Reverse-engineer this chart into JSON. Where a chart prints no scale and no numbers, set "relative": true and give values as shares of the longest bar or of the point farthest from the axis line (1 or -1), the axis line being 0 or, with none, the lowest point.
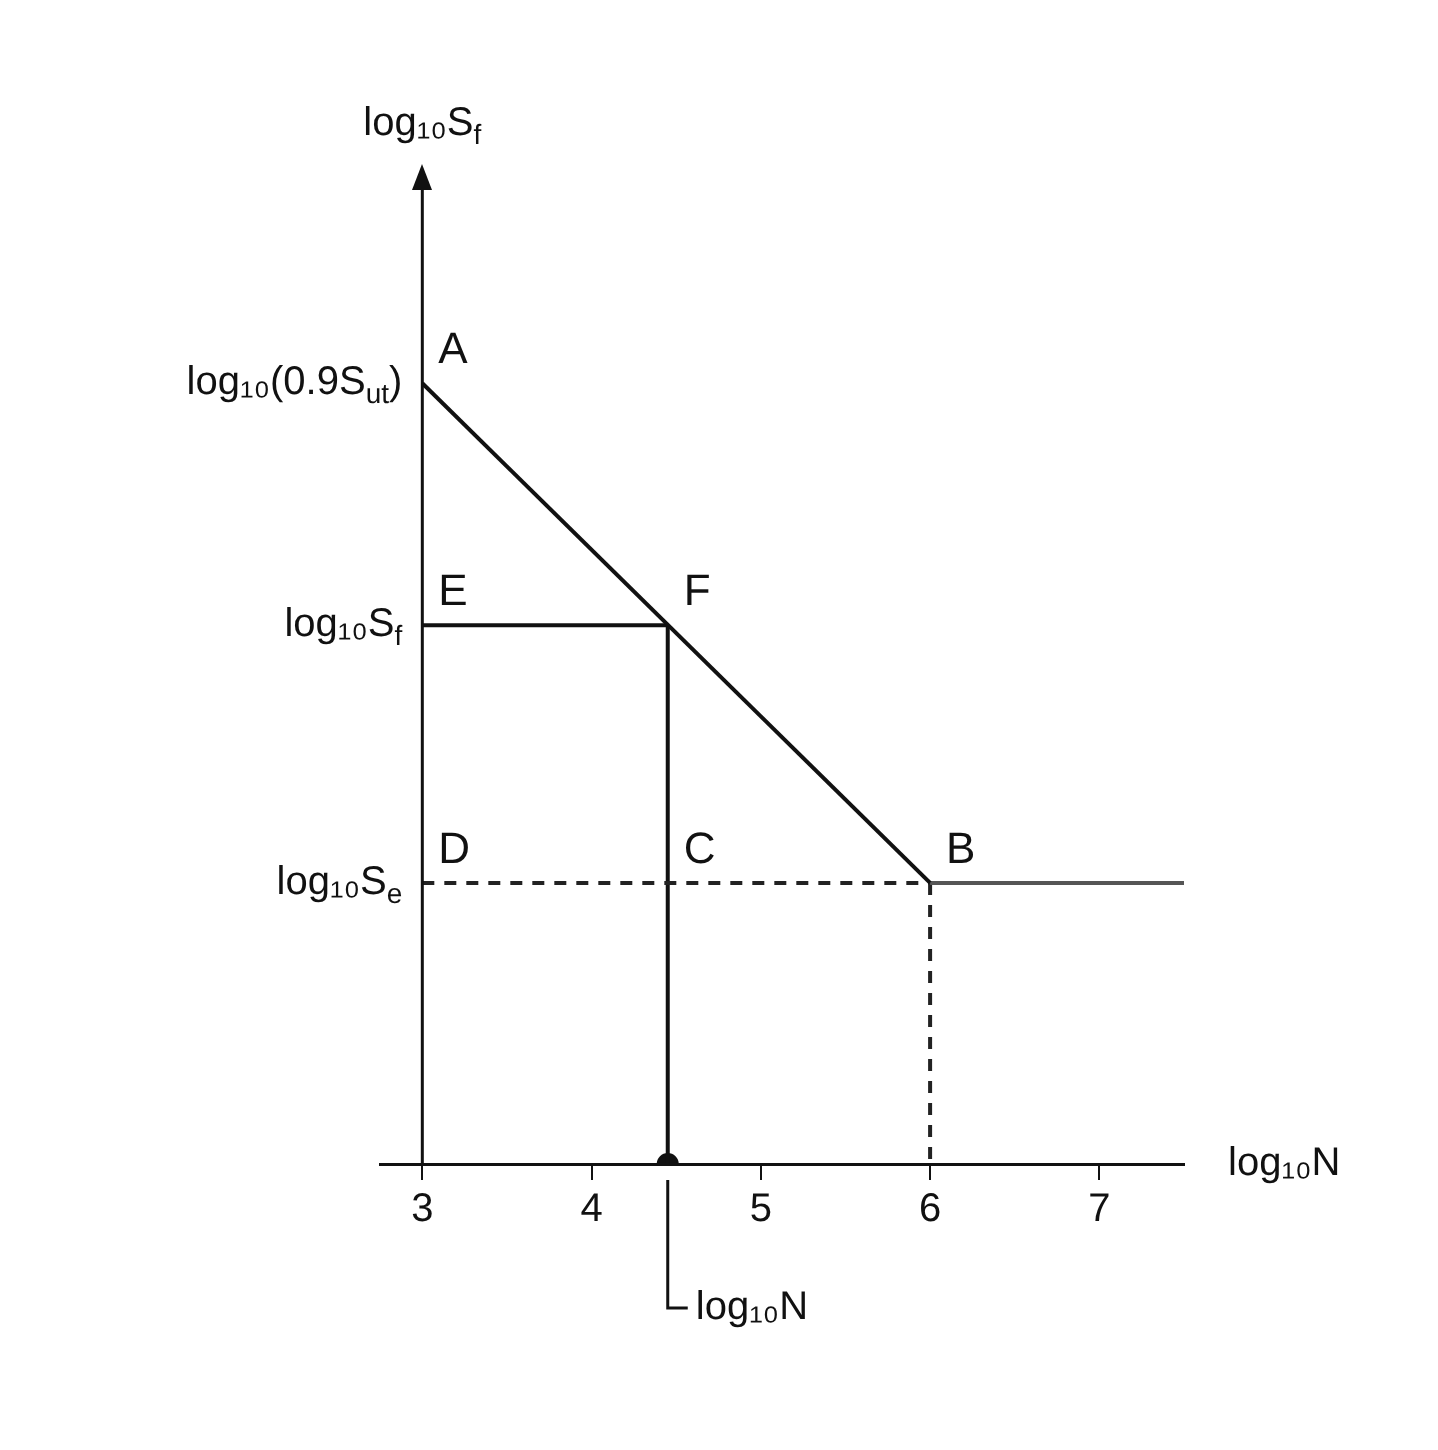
{
  "chart_data": {
    "type": "line",
    "relative": true,
    "xlabel": "log₁₀N",
    "ref_lines": [
      {
        "axis": "x",
        "value": 3,
        "color": "#111111"
      }
    ],
    "xlim": [
      2.75,
      7.5
    ],
    "xticks": [
      3,
      4,
      5,
      6,
      7
    ],
    "grid": false,
    "legend": false,
    "marker": "none",
    "series": [
      {
        "x": [
          3,
          6
        ],
        "values": [
          1,
          0.36
        ],
        "color": "#111111"
      },
      {
        "x": [
          6,
          7.5
        ],
        "values": [
          0.36,
          0.36
        ],
        "color": "#555555"
      },
      {
        "x": [
          3,
          6
        ],
        "values": [
          0.36,
          0.36
        ],
        "color": "#222222",
        "line_style": "dashed"
      },
      {
        "x": [
          6,
          6
        ],
        "values": [
          0.36,
          0
        ],
        "color": "#222222",
        "line_style": "dashed"
      },
      {
        "x": [
          4.45,
          4.45
        ],
        "values": [
          0,
          0.69
        ],
        "color": "#111111"
      },
      {
        "x": [
          4.45,
          3
        ],
        "values": [
          0.69,
          0.69
        ],
        "color": "#111111"
      },
      {
        "type": "scatter",
        "x": [
          4.45
        ],
        "values": [
          0
        ],
        "color": "#111111",
        "marker": "circle"
      }
    ],
    "annotations": [
      {
        "text": "log₁₀(0.9S$_{ut}$)",
        "x": 3,
        "y": 1
      },
      {
        "text": "log₁₀S$_{f}$",
        "x": 3,
        "y": 0.69
      },
      {
        "text": "log₁₀S$_{e}$",
        "x": 3,
        "y": 0.36
      },
      {
        "text": "A",
        "x": 3,
        "y": 1
      },
      {
        "text": "E",
        "x": 3,
        "y": 0.69
      },
      {
        "text": "F",
        "x": 4.45,
        "y": 0.69
      },
      {
        "text": "D",
        "x": 3,
        "y": 0.36
      },
      {
        "text": "C",
        "x": 4.45,
        "y": 0.36
      },
      {
        "text": "B",
        "x": 6,
        "y": 0.36
      },
      {
        "text": "log₁₀N",
        "x": 4.45,
        "y": 0
      },
      "log₁₀S$_{f}$"
    ]
  }
}
